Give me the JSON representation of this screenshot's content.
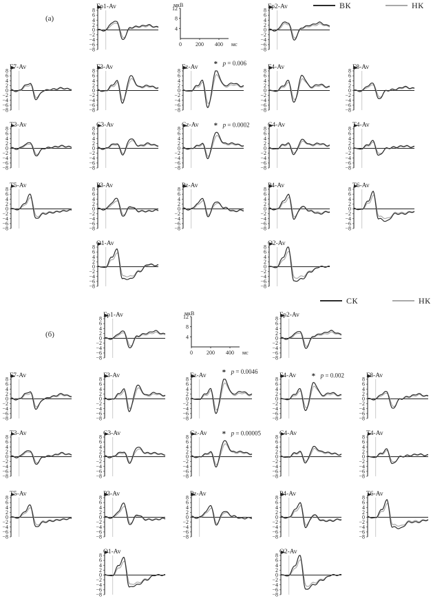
{
  "colors": {
    "group1": "#2a2a2a",
    "group2": "#a8a8a8",
    "axis": "#1e1e1e"
  },
  "icons": {
    "onset_marker": "flag-icon",
    "significance_marker": "asterisk-icon"
  },
  "chart_data": [
    {
      "panel_label": "(а)",
      "type": "line",
      "legend": [
        "ВК",
        "НК"
      ],
      "scale_bar": {
        "y_unit": "мкВ",
        "y_ticks": [
          "12",
          "8",
          "4"
        ],
        "x_ticks": [
          "0",
          "200",
          "400"
        ],
        "x_unit": "мс"
      },
      "y_ticks": [
        "8",
        "6",
        "4",
        "2",
        "0",
        "−2",
        "−4",
        "−6",
        "−8"
      ],
      "electrodes": [
        {
          "label": "Fp1-Av",
          "peaks": [
            3,
            3.5,
            -4,
            1,
            1.5,
            2
          ],
          "p": ""
        },
        {
          "label": "Fp2-Av",
          "peaks": [
            3,
            3,
            -4,
            1,
            2,
            3
          ],
          "p": ""
        },
        {
          "label": "F7-Av",
          "peaks": [
            2,
            3,
            -3.5,
            0,
            0.5,
            1
          ],
          "p": ""
        },
        {
          "label": "F3-Av",
          "peaks": [
            2,
            4,
            -5,
            6,
            1.5,
            2
          ],
          "p": ""
        },
        {
          "label": "Fz-Av",
          "peaks": [
            2,
            4,
            -7,
            8,
            2,
            3
          ],
          "p": "0.006"
        },
        {
          "label": "F4-Av",
          "peaks": [
            2,
            4,
            -5,
            6,
            1.5,
            2.5
          ],
          "p": ""
        },
        {
          "label": "F8-Av",
          "peaks": [
            2,
            3,
            -3.5,
            0,
            0.5,
            1.5
          ],
          "p": ""
        },
        {
          "label": "T3-Av",
          "peaks": [
            1.5,
            2.5,
            -3,
            0,
            0.5,
            1
          ],
          "p": ""
        },
        {
          "label": "C3-Av",
          "peaks": [
            1.5,
            2,
            -2.5,
            4,
            1,
            2
          ],
          "p": ""
        },
        {
          "label": "Cz-Av",
          "peaks": [
            1,
            2,
            -4,
            6.5,
            2,
            2
          ],
          "p": "0.0002"
        },
        {
          "label": "C4-Av",
          "peaks": [
            1.5,
            2,
            -2.5,
            3.5,
            1.5,
            2
          ],
          "p": ""
        },
        {
          "label": "T4-Av",
          "peaks": [
            1.5,
            3,
            -3,
            0,
            0.5,
            1
          ],
          "p": ""
        },
        {
          "label": "T5-Av",
          "peaks": [
            2.5,
            6,
            -4,
            -2,
            -1.5,
            -1
          ],
          "p": ""
        },
        {
          "label": "P3-Av",
          "peaks": [
            2.5,
            4.5,
            -3,
            1,
            -1,
            -1
          ],
          "p": ""
        },
        {
          "label": "Pz-Av",
          "peaks": [
            2,
            4.5,
            -3,
            3,
            0.5,
            -1
          ],
          "p": ""
        },
        {
          "label": "P4-Av",
          "peaks": [
            3,
            6,
            -4,
            1,
            -1,
            -2
          ],
          "p": ""
        },
        {
          "label": "T6-Av",
          "peaks": [
            3,
            7,
            -4,
            -5,
            -2,
            -2
          ],
          "p": ""
        },
        {
          "label": "O1-Av",
          "peaks": [
            4,
            7,
            -5,
            -5,
            -2,
            1
          ],
          "p": ""
        },
        {
          "label": "O2-Av",
          "peaks": [
            4,
            8,
            -6,
            -5,
            -2,
            0
          ],
          "p": ""
        }
      ]
    },
    {
      "panel_label": "(б)",
      "type": "line",
      "legend": [
        "СК",
        "НК"
      ],
      "scale_bar": {
        "y_unit": "мкВ",
        "y_ticks": [
          "12",
          "8",
          "4"
        ],
        "x_ticks": [
          "0",
          "200",
          "400"
        ],
        "x_unit": "мс"
      },
      "y_ticks": [
        "8",
        "6",
        "4",
        "2",
        "0",
        "−2",
        "−4",
        "−6",
        "−8"
      ],
      "electrodes": [
        {
          "label": "Fp1-Av",
          "peaks": [
            2,
            3,
            -4,
            1,
            2,
            3
          ],
          "p": ""
        },
        {
          "label": "Fp2-Av",
          "peaks": [
            2,
            3,
            -4,
            1,
            2,
            3
          ],
          "p": ""
        },
        {
          "label": "F7-Av",
          "peaks": [
            2,
            3,
            -4,
            0,
            1,
            2
          ],
          "p": ""
        },
        {
          "label": "F3-Av",
          "peaks": [
            2,
            4,
            -5,
            5.5,
            1.5,
            2.5
          ],
          "p": ""
        },
        {
          "label": "Fz-Av",
          "peaks": [
            2,
            4,
            -6,
            8,
            2,
            3
          ],
          "p": "0.0046"
        },
        {
          "label": "F4-Av",
          "peaks": [
            2,
            4,
            -5,
            6.5,
            1.5,
            2.5
          ],
          "p": "0.002"
        },
        {
          "label": "F8-Av",
          "peaks": [
            2,
            3,
            -4,
            0,
            1,
            2
          ],
          "p": ""
        },
        {
          "label": "T3-Av",
          "peaks": [
            2,
            2.5,
            -3,
            0,
            0.5,
            1.5
          ],
          "p": ""
        },
        {
          "label": "C3-Av",
          "peaks": [
            1.5,
            2,
            -2.5,
            4,
            1.5,
            1.5
          ],
          "p": ""
        },
        {
          "label": "Cz-Av",
          "peaks": [
            1,
            2,
            -4,
            6.5,
            2,
            2
          ],
          "p": "0.00005"
        },
        {
          "label": "C4-Av",
          "peaks": [
            1.5,
            2,
            -2.5,
            4,
            2,
            1.5
          ],
          "p": ""
        },
        {
          "label": "T4-Av",
          "peaks": [
            1.5,
            3,
            -3,
            0,
            0.5,
            1
          ],
          "p": ""
        },
        {
          "label": "T5-Av",
          "peaks": [
            2.5,
            5,
            -4,
            -2,
            -1.5,
            -1
          ],
          "p": ""
        },
        {
          "label": "P3-Av",
          "peaks": [
            2.5,
            6,
            -3,
            1,
            -1,
            -1
          ],
          "p": ""
        },
        {
          "label": "Pz-Av",
          "peaks": [
            2,
            5,
            -3,
            2.5,
            0.5,
            -0.5
          ],
          "p": ""
        },
        {
          "label": "P4-Av",
          "peaks": [
            3,
            6,
            -4,
            1,
            -1.5,
            -1.5
          ],
          "p": ""
        },
        {
          "label": "T6-Av",
          "peaks": [
            3,
            7,
            -4,
            -4.5,
            -2,
            -2
          ],
          "p": ""
        },
        {
          "label": "O1-Av",
          "peaks": [
            4,
            7,
            -5,
            -4,
            -2,
            0
          ],
          "p": ""
        },
        {
          "label": "O2-Av",
          "peaks": [
            4,
            8,
            -6,
            -4,
            -2,
            0
          ],
          "p": ""
        }
      ]
    }
  ]
}
